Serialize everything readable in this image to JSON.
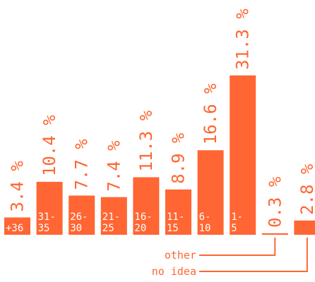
{
  "chart_data": {
    "type": "bar",
    "title": "",
    "xlabel": "",
    "ylabel": "",
    "color": "#ff6633",
    "ylim": [
      0,
      31.3
    ],
    "categories": [
      "+36",
      "31-35",
      "26-30",
      "21-25",
      "16-20",
      "11-15",
      "6-10",
      "1-5",
      "other",
      "no idea"
    ],
    "values": [
      3.4,
      10.4,
      7.7,
      7.4,
      11.3,
      8.9,
      16.6,
      31.3,
      0.3,
      2.8
    ],
    "value_labels": [
      "3.4 %",
      "10.4 %",
      "7.7 %",
      "7.4 %",
      "11.3 %",
      "8.9 %",
      "16.6 %",
      "31.3 %",
      "0.3 %",
      "2.8 %"
    ],
    "category_label_lines": [
      [
        "+36"
      ],
      [
        "31-",
        "35"
      ],
      [
        "26-",
        "30"
      ],
      [
        "21-",
        "25"
      ],
      [
        "16-",
        "20"
      ],
      [
        "11-",
        "15"
      ],
      [
        "6-",
        "10"
      ],
      [
        "1-",
        "5"
      ],
      [],
      []
    ],
    "callouts": [
      {
        "label": "other",
        "category_index": 8
      },
      {
        "label": "no idea",
        "category_index": 9
      }
    ]
  }
}
